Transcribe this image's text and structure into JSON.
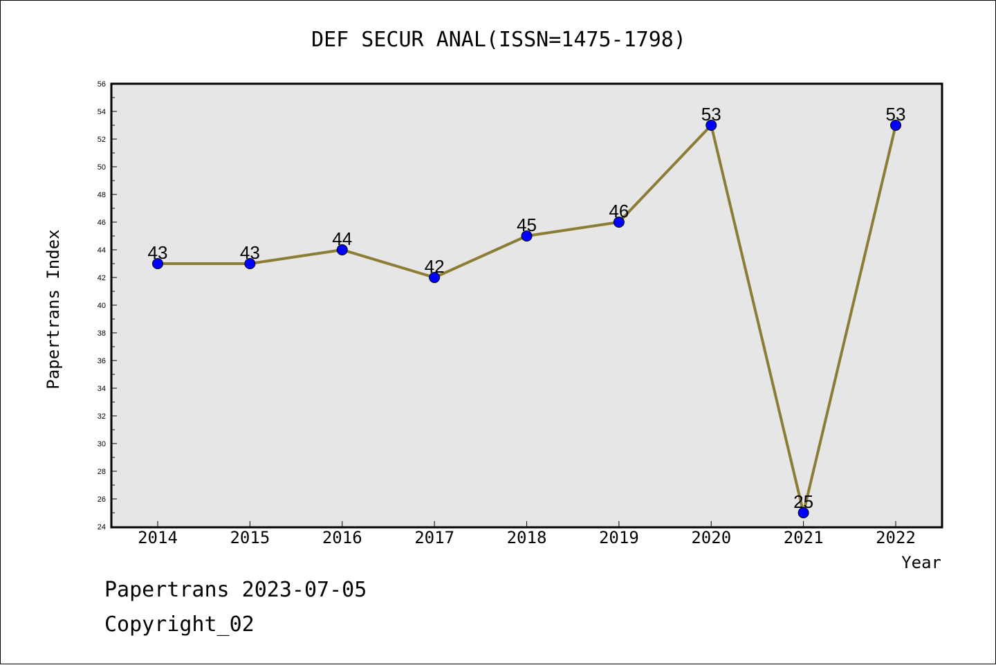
{
  "chart_data": {
    "type": "line",
    "title": "DEF SECUR ANAL(ISSN=1475-1798)",
    "xlabel": "Year",
    "ylabel": "Papertrans Index",
    "categories": [
      "2014",
      "2015",
      "2016",
      "2017",
      "2018",
      "2019",
      "2020",
      "2021",
      "2022"
    ],
    "series": [
      {
        "values": [
          43,
          43,
          44,
          42,
          45,
          46,
          53,
          25,
          53
        ]
      }
    ],
    "data_labels": [
      "43",
      "43",
      "44",
      "42",
      "45",
      "46",
      "53",
      "25",
      "53"
    ],
    "ylim": [
      24,
      56
    ],
    "yticks": [
      "24",
      "26",
      "28",
      "30",
      "32",
      "34",
      "36",
      "38",
      "40",
      "42",
      "44",
      "46",
      "48",
      "50",
      "52",
      "54",
      "56"
    ],
    "grid": false,
    "legend": "none",
    "colors": {
      "line": "#8b7d35",
      "marker": "#0000ff",
      "plot_background": "#e6e6e6",
      "axes": "#000000"
    }
  },
  "footer": {
    "line1": "Papertrans 2023-07-05",
    "line2": "Copyright_02"
  }
}
